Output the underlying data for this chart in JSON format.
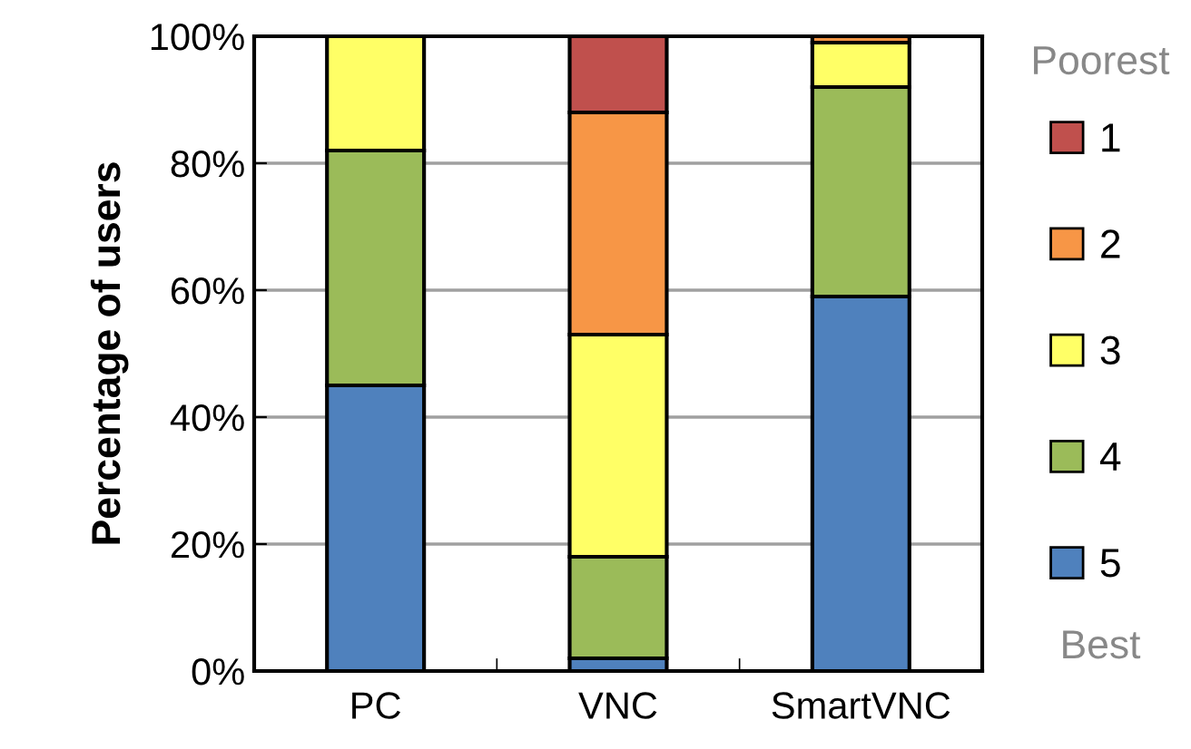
{
  "chart_data": {
    "type": "bar",
    "stacked": true,
    "ylabel": "Percentage of users",
    "categories": [
      "PC",
      "VNC",
      "SmartVNC"
    ],
    "series": [
      {
        "name": "5",
        "color": "#4f81bd",
        "values": [
          45,
          2,
          59
        ]
      },
      {
        "name": "4",
        "color": "#9bbb59",
        "values": [
          37,
          16,
          33
        ]
      },
      {
        "name": "3",
        "color": "#ffff66",
        "values": [
          18,
          35,
          7
        ]
      },
      {
        "name": "2",
        "color": "#f79646",
        "values": [
          null,
          35,
          1
        ]
      },
      {
        "name": "1",
        "color": "#c0504d",
        "values": [
          null,
          12,
          null
        ]
      }
    ],
    "ylim": [
      0,
      100
    ],
    "yticks": [
      {
        "value": 0,
        "label": "0%"
      },
      {
        "value": 20,
        "label": "20%"
      },
      {
        "value": 40,
        "label": "40%"
      },
      {
        "value": 60,
        "label": "60%"
      },
      {
        "value": 80,
        "label": "80%"
      },
      {
        "value": 100,
        "label": "100%"
      }
    ],
    "grid": "y",
    "legend": "right",
    "annotations": [
      "Poorest",
      "Best"
    ]
  }
}
